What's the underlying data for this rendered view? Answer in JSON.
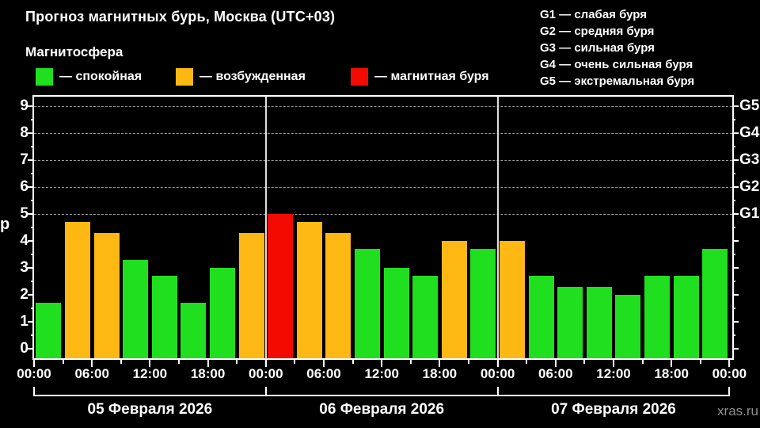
{
  "header": {
    "title": "Прогноз магнитных бурь, Москва (UTC+03)",
    "subtitle": "Магнитосфера"
  },
  "legend": {
    "items": [
      {
        "status": "quiet",
        "label": "— спокойная",
        "color": "#1fdf1f"
      },
      {
        "status": "excited",
        "label": "— возбужденная",
        "color": "#fdb813"
      },
      {
        "status": "storm",
        "label": "— магнитная буря",
        "color": "#f30a00"
      }
    ]
  },
  "storm_scale_legend": {
    "items": [
      "G1 — слабая буря",
      "G2 — средняя буря",
      "G3 — сильная буря",
      "G4 — очень сильная буря",
      "G5 — экстремальная буря"
    ]
  },
  "watermark": "xras.ru",
  "chart_data": {
    "type": "bar",
    "title": "Прогноз магнитных бурь, Москва (UTC+03)",
    "ylabel": "Кр",
    "ylabel_visible": "р",
    "ylim": [
      0,
      9
    ],
    "yticks": [
      0,
      1,
      2,
      3,
      4,
      5,
      6,
      7,
      8,
      9
    ],
    "dashed_gridlines_at_kp": [
      5,
      6,
      7,
      8,
      9
    ],
    "right_axis_labels": [
      {
        "label": "G1",
        "kp": 5
      },
      {
        "label": "G2",
        "kp": 6
      },
      {
        "label": "G3",
        "kp": 7
      },
      {
        "label": "G4",
        "kp": 8
      },
      {
        "label": "G5",
        "kp": 9
      }
    ],
    "x_tick_labels": [
      "00:00",
      "06:00",
      "12:00",
      "18:00",
      "00:00",
      "06:00",
      "12:00",
      "18:00",
      "00:00",
      "06:00",
      "12:00",
      "18:00",
      "00:00"
    ],
    "interval_hours": 3,
    "days": [
      {
        "date": "05 Февраля 2026",
        "values": [
          1.7,
          4.7,
          4.3,
          3.3,
          2.7,
          1.7,
          3.0,
          4.3
        ]
      },
      {
        "date": "06 Февраля 2026",
        "values": [
          5.0,
          4.7,
          4.3,
          3.7,
          3.0,
          2.7,
          4.0,
          3.7
        ]
      },
      {
        "date": "07 Февраля 2026",
        "values": [
          4.0,
          2.7,
          2.3,
          2.3,
          2.0,
          2.7,
          2.7,
          3.7
        ]
      }
    ],
    "color_thresholds": {
      "excited_min": 4.0,
      "storm_min": 5.0
    },
    "legend_position": "top",
    "grid": "dashed horizontal at Kp 5..9"
  }
}
